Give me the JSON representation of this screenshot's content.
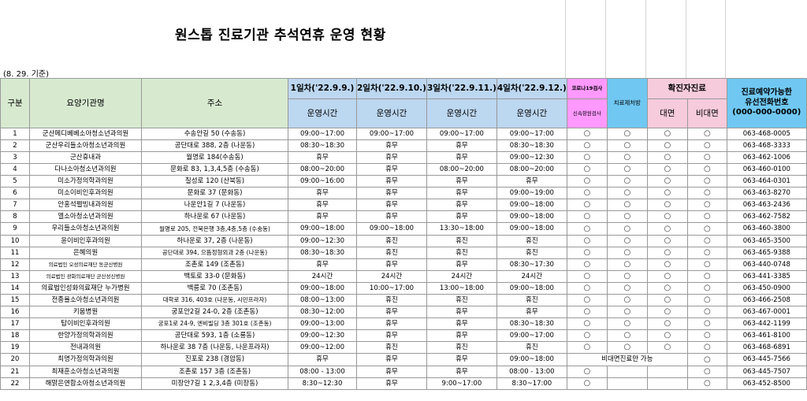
{
  "title": "원스톱 진료기관 추석연휴 운영 현황",
  "note": "(8. 29. 기준)",
  "headers": {
    "gubun": "구분",
    "name": "요양기관명",
    "address": "주소",
    "day1": "1일차('22.9.9.)",
    "day2": "2일차('22.9.10.)",
    "day3": "3일차('22.9.11.)",
    "day4": "4일차('22.9.12.)",
    "optime": "운영시간",
    "covid_top": "코로나19검사",
    "covid_bottom": "신속항원검사",
    "treat": "치료제처방",
    "confirmed": "확진자진료",
    "face": "대면",
    "nonface": "비대면",
    "phone1": "진료예약가능한",
    "phone2": "유선전화번호",
    "phone3": "(000-000-0000)"
  },
  "circle": "○",
  "special_note": "비대면진료만 가능",
  "rows": [
    {
      "n": "1",
      "name": "군산메디베베소아청소년과의원",
      "addr": "수송안길 50 (수송동)",
      "d1": "09:00~17:00",
      "d2": "09:00~17:00",
      "d3": "09:00~17:00",
      "d4": "09:00~17:00",
      "c": [
        1,
        1,
        1,
        1
      ],
      "tel": "063-468-0005"
    },
    {
      "n": "2",
      "name": "군산우리들소아청소년과의원",
      "addr": "공단대로 388, 2층 (나운동)",
      "d1": "08:30~18:30",
      "d2": "휴무",
      "d3": "휴무",
      "d4": "08:30~18:30",
      "c": [
        1,
        1,
        1,
        1
      ],
      "tel": "063-468-3333"
    },
    {
      "n": "3",
      "name": "군산휴내과",
      "addr": "월명로 184(수송동)",
      "d1": "휴무",
      "d2": "휴무",
      "d3": "휴무",
      "d4": "09:00~12:30",
      "c": [
        1,
        1,
        1,
        1
      ],
      "tel": "063-462-1006"
    },
    {
      "n": "4",
      "name": "다나소아청소년과의원",
      "addr": "문화로 83, 1,3,4,5층 (수송동)",
      "d1": "08:00~20:00",
      "d2": "휴무",
      "d3": "08:00~20:00",
      "d4": "08:00~20:00",
      "c": [
        1,
        1,
        1,
        1
      ],
      "tel": "063-460-0100"
    },
    {
      "n": "5",
      "name": "미소가정의학과의원",
      "addr": "칠성로 120 (산북동)",
      "d1": "09:00~16:00",
      "d2": "휴무",
      "d3": "휴무",
      "d4": "휴무",
      "c": [
        1,
        1,
        1,
        1
      ],
      "tel": "063-464-0301"
    },
    {
      "n": "6",
      "name": "미소이비인후과의원",
      "addr": "문화로 37 (문화동)",
      "d1": "휴무",
      "d2": "휴무",
      "d3": "휴무",
      "d4": "09:00~19:00",
      "c": [
        1,
        1,
        1,
        1
      ],
      "tel": "063-463-8270"
    },
    {
      "n": "7",
      "name": "안홍석펠빙내과의원",
      "addr": "나운안1길 7 (나운동)",
      "d1": "휴무",
      "d2": "휴무",
      "d3": "휴무",
      "d4": "09:00~18:00",
      "c": [
        1,
        1,
        1,
        1
      ],
      "tel": "063-463-2436"
    },
    {
      "n": "8",
      "name": "엘소아청소년과의원",
      "addr": "하나운로 67 (나운동)",
      "d1": "휴무",
      "d2": "휴무",
      "d3": "휴무",
      "d4": "09:00~18:00",
      "c": [
        1,
        1,
        1,
        1
      ],
      "tel": "063-462-7582"
    },
    {
      "n": "9",
      "name": "우리들소아청소년과의원",
      "addr": "월명로 205, 전북은행 3층,4층,5층 (수송동)",
      "d1": "09:00~18:00",
      "d2": "09:00~18:00",
      "d3": "13:30~18:00",
      "d4": "09:00~18:00",
      "c": [
        1,
        1,
        1,
        1
      ],
      "tel": "063-460-3800"
    },
    {
      "n": "10",
      "name": "윤이비인후과의원",
      "addr": "하나운로 37, 2층 (나운동)",
      "d1": "09:00~12:30",
      "d2": "휴진",
      "d3": "휴진",
      "d4": "휴진",
      "c": [
        1,
        1,
        1,
        1
      ],
      "tel": "063-465-3500"
    },
    {
      "n": "11",
      "name": "은혜의원",
      "addr": "공단대로 394, 으뜸정형외과 2층 (나운동)",
      "d1": "08:30~18:30",
      "d2": "휴진",
      "d3": "휴진",
      "d4": "휴진",
      "c": [
        1,
        1,
        1,
        1
      ],
      "tel": "063-465-9388"
    },
    {
      "n": "12",
      "name": "의료법인 오성의료재단 동군산병원",
      "addr": "조촌로 149 (조촌동)",
      "d1": "휴무",
      "d2": "휴무",
      "d3": "휴무",
      "d4": "08:30~17:30",
      "c": [
        1,
        1,
        1,
        1
      ],
      "tel": "063-440-0748"
    },
    {
      "n": "13",
      "name": "의료법인 광화의료재단 군산성신병원",
      "addr": "백토로 33-0 (문화동)",
      "d1": "24시간",
      "d2": "24시간",
      "d3": "24시간",
      "d4": "24시간",
      "c": [
        1,
        1,
        1,
        1
      ],
      "tel": "063-441-3385"
    },
    {
      "n": "14",
      "name": "의료법인성화의료재단 누가병원",
      "addr": "백릉로 70 (조촌동)",
      "d1": "09:00~18:00",
      "d2": "10:00~17:00",
      "d3": "13:00~18:00",
      "d4": "09:00~18:00",
      "c": [
        1,
        1,
        1,
        1
      ],
      "tel": "063-450-0900"
    },
    {
      "n": "15",
      "name": "전종율소아청소년과의원",
      "addr": "대학로 316, 403호 (나운동, 시민프라자)",
      "d1": "08:00~13:00",
      "d2": "휴진",
      "d3": "휴진",
      "d4": "휴진",
      "c": [
        1,
        1,
        1,
        1
      ],
      "tel": "063-466-2508"
    },
    {
      "n": "16",
      "name": "키움병원",
      "addr": "궁포안2길 24-0, 2층 (조촌동)",
      "d1": "08:30~12:00",
      "d2": "휴무",
      "d3": "휴무",
      "d4": "휴무",
      "c": [
        1,
        1,
        1,
        1
      ],
      "tel": "063-467-0001"
    },
    {
      "n": "17",
      "name": "탑이비인후과의원",
      "addr": "궁포1로 24-9, 엔비빌딩 3층 301호 (조촌동)",
      "d1": "09:00~13:00",
      "d2": "휴무",
      "d3": "휴무",
      "d4": "08:30~18:30",
      "c": [
        1,
        1,
        1,
        1
      ],
      "tel": "063-442-1199"
    },
    {
      "n": "18",
      "name": "한양가정의학과의원",
      "addr": "공단대로 593, 1층 (소룡동)",
      "d1": "09:00~12:30",
      "d2": "휴무",
      "d3": "휴무",
      "d4": "09:00~17:00",
      "c": [
        1,
        1,
        1,
        1
      ],
      "tel": "063-461-8100"
    },
    {
      "n": "19",
      "name": "전내과의원",
      "addr": "하나운로 38 7층 (나운동, 나운프라자)",
      "d1": "09:00~12:00",
      "d2": "휴진",
      "d3": "휴진",
      "d4": "휴진",
      "c": [
        1,
        1,
        1,
        1
      ],
      "tel": "063-468-6891"
    },
    {
      "n": "20",
      "name": "최명가정의학과의원",
      "addr": "진포로 238 (경암동)",
      "d1": "휴무",
      "d2": "휴무",
      "d3": "휴무",
      "d4": "09:00~18:00",
      "c": [
        0,
        0,
        0,
        1
      ],
      "special": true,
      "tel": "063-445-7566"
    },
    {
      "n": "21",
      "name": "최재훈소아청소년과의원",
      "addr": "조촌로 157 3층 (조촌동)",
      "d1": "08:00 - 13:00",
      "d2": "휴무",
      "d3": "휴무",
      "d4": "08:00 - 13:00",
      "c": [
        1,
        0,
        0,
        1
      ],
      "tel": "063-445-7507"
    },
    {
      "n": "22",
      "name": "해맑은연합소아청소년과의원",
      "addr": "미장안7길 1 2,3,4층 (미장동)",
      "d1": "8:30~12:30",
      "d2": "휴무",
      "d3": "9:00~17:00",
      "d4": "8:30~17:00",
      "c": [
        1,
        0,
        0,
        1
      ],
      "tel": "063-452-8500"
    }
  ]
}
